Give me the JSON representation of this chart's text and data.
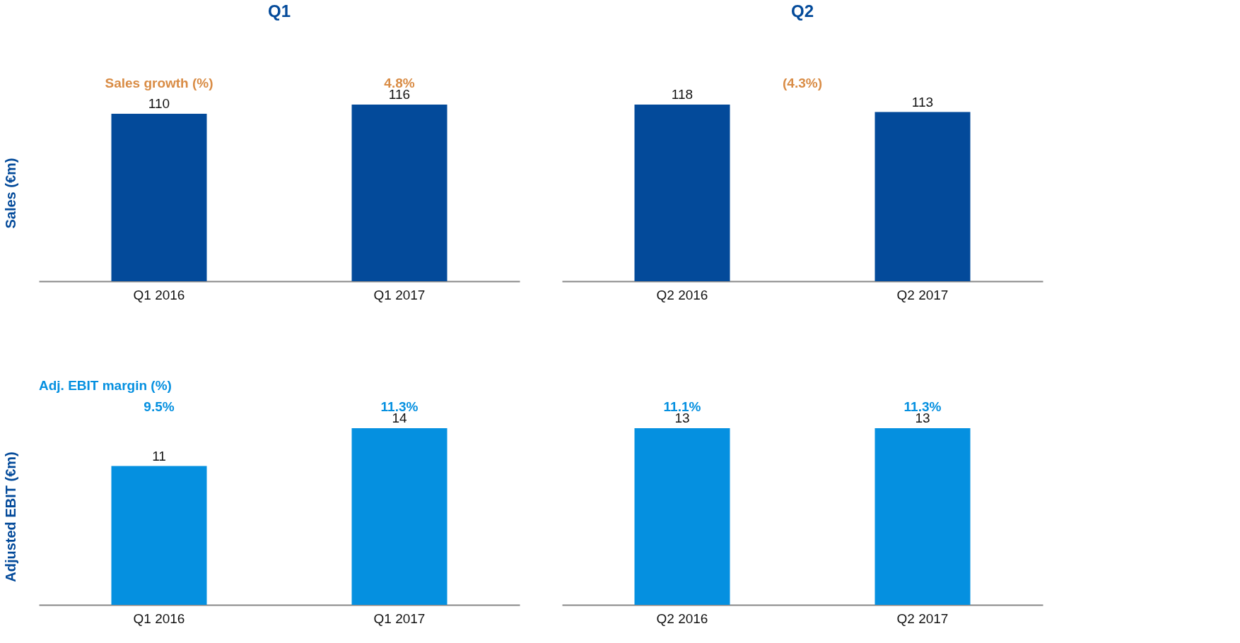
{
  "chart_data": [
    {
      "type": "bar",
      "title": "Q1",
      "ylabel": "Sales (€m)",
      "categories": [
        "Q1 2016",
        "Q1 2017"
      ],
      "values": [
        110,
        116
      ],
      "color": "#034a9a",
      "data_labels": true,
      "annotations": [
        "Sales growth (%)",
        "4.8%"
      ]
    },
    {
      "type": "bar",
      "title": "Q2",
      "categories": [
        "Q2 2016",
        "Q2 2017"
      ],
      "values": [
        118,
        113
      ],
      "color": "#034a9a",
      "data_labels": true,
      "annotations": [
        "(4.3%)"
      ]
    },
    {
      "type": "bar",
      "ylabel": "Adjusted EBIT (€m)",
      "categories": [
        "Q1 2016",
        "Q1 2017"
      ],
      "values": [
        11,
        14
      ],
      "color": "#0590e0",
      "data_labels": true,
      "annotations": [
        "Adj. EBIT margin (%)",
        "9.5%",
        "11.3%"
      ]
    },
    {
      "type": "bar",
      "categories": [
        "Q2 2016",
        "Q2 2017"
      ],
      "values": [
        13,
        13
      ],
      "color": "#0590e0",
      "data_labels": true,
      "annotations": [
        "11.1%",
        "11.3%"
      ]
    }
  ]
}
